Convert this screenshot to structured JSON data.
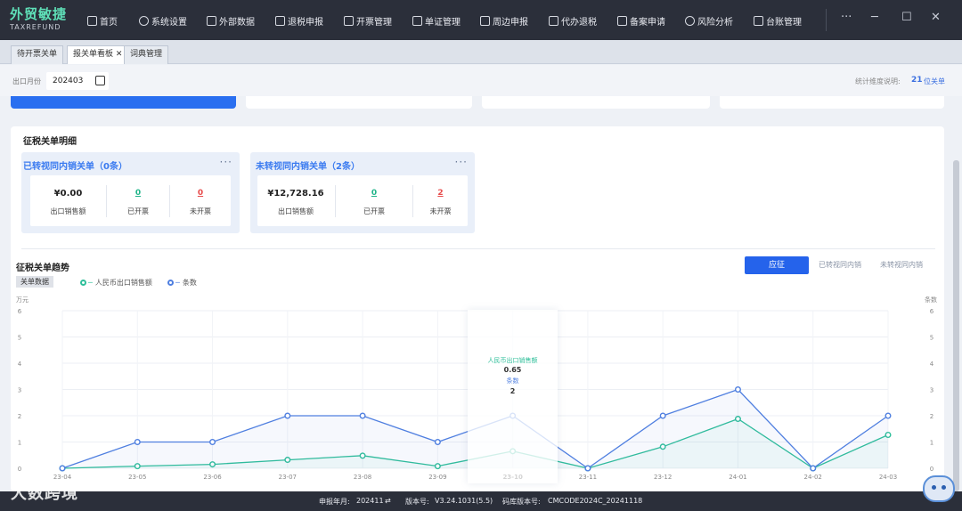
{
  "app": {
    "name_cn": "外贸敏捷",
    "name_en": "TAXREFUND"
  },
  "nav": [
    {
      "label": "首页",
      "icon": "home-icon"
    },
    {
      "label": "系统设置",
      "icon": "settings-icon"
    },
    {
      "label": "外部数据",
      "icon": "external-data-icon"
    },
    {
      "label": "退税申报",
      "icon": "refund-declare-icon"
    },
    {
      "label": "开票管理",
      "icon": "invoice-icon"
    },
    {
      "label": "单证管理",
      "icon": "document-icon"
    },
    {
      "label": "周边申报",
      "icon": "peripheral-declare-icon"
    },
    {
      "label": "代办退税",
      "icon": "agent-refund-icon"
    },
    {
      "label": "备案申请",
      "icon": "filing-icon"
    },
    {
      "label": "风险分析",
      "icon": "risk-icon"
    },
    {
      "label": "台账管理",
      "icon": "ledger-icon"
    }
  ],
  "window": {
    "more": "···",
    "minimize": "─",
    "maximize": "☐",
    "close": "✕"
  },
  "tabs": [
    {
      "label": "待开票关单",
      "active": false
    },
    {
      "label": "报关单看板",
      "active": true,
      "close": "✕"
    },
    {
      "label": "词典管理",
      "active": false
    }
  ],
  "filter": {
    "label": "出口月份",
    "value": "202403",
    "note_label": "统计维度说明:",
    "note_value": "21",
    "note_unit": "位关单"
  },
  "detail": {
    "title": "征税关单明细",
    "cards": [
      {
        "title": "已转视同内销关单（0条）",
        "more": "···",
        "amount": "¥0.00",
        "amount_label": "出口销售额",
        "invoiced": "0",
        "invoiced_label": "已开票",
        "not_invoiced": "0",
        "not_invoiced_label": "未开票"
      },
      {
        "title": "未转视同内销关单（2条）",
        "more": "···",
        "amount": "¥12,728.16",
        "amount_label": "出口销售额",
        "invoiced": "0",
        "invoiced_label": "已开票",
        "not_invoiced": "2",
        "not_invoiced_label": "未开票"
      }
    ]
  },
  "trend": {
    "title": "征税关单趋势",
    "toggles": [
      "应征",
      "已转视同内销",
      "未转视同内销"
    ],
    "active_toggle": "应征",
    "tag": "关单数据",
    "legend": [
      "人民币出口销售额",
      "条数"
    ],
    "y_left_unit": "万元",
    "y_right_unit": "条数",
    "tooltip": {
      "label1": "人民币出口销售额",
      "value1": "0.65",
      "label2": "条数",
      "value2": "2"
    }
  },
  "chart_data": {
    "type": "line",
    "x": [
      "23-04",
      "23-05",
      "23-06",
      "23-07",
      "23-08",
      "23-09",
      "23-10",
      "23-11",
      "23-12",
      "24-01",
      "24-02",
      "24-03"
    ],
    "series": [
      {
        "name": "人民币出口销售额",
        "values": [
          0,
          0.08,
          0.15,
          0.32,
          0.48,
          0.08,
          0.65,
          0,
          0.82,
          1.88,
          0,
          1.27
        ],
        "color": "#2fbf9a",
        "axis": "left"
      },
      {
        "name": "条数",
        "values": [
          0,
          1,
          1,
          2,
          2,
          1,
          2,
          0,
          2,
          3,
          0,
          2
        ],
        "color": "#4f7fe0",
        "axis": "right"
      }
    ],
    "y_ticks": [
      "0",
      "1",
      "2",
      "3",
      "4",
      "5",
      "6"
    ],
    "ylim": [
      0,
      6
    ],
    "grid": true,
    "legend_position": "top-left",
    "highlight": "23-10"
  },
  "status": {
    "period_label": "申报年月:",
    "period_value": "202411",
    "version_label": "版本号:",
    "version_value": "V3.24.1031(5.5)",
    "code_label": "码库版本号:",
    "code_value": "CMCODE2024C_20241118"
  },
  "watermark": "大数跨境"
}
